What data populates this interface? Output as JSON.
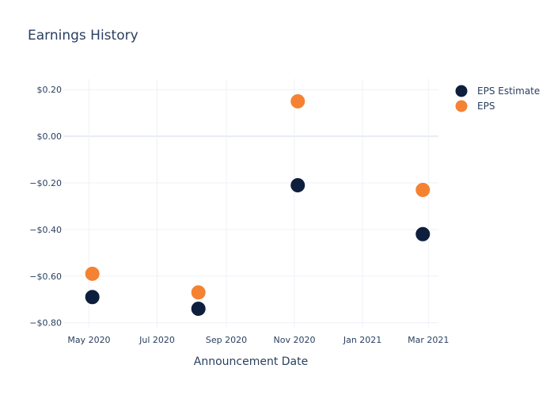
{
  "chart_data": {
    "type": "scatter",
    "title": "Earnings History",
    "xlabel": "Announcement Date",
    "ylabel": "",
    "x_axis_type": "date",
    "x_ticks": [
      {
        "date": "2020-05-01",
        "label": "May 2020"
      },
      {
        "date": "2020-07-01",
        "label": "Jul 2020"
      },
      {
        "date": "2020-09-01",
        "label": "Sep 2020"
      },
      {
        "date": "2020-11-01",
        "label": "Nov 2020"
      },
      {
        "date": "2021-01-01",
        "label": "Jan 2021"
      },
      {
        "date": "2021-03-01",
        "label": "Mar 2021"
      }
    ],
    "xlim": [
      "2020-04-08",
      "2021-03-10"
    ],
    "y_ticks": [
      {
        "value": 0.2,
        "label": "$0.20"
      },
      {
        "value": 0.0,
        "label": "$0.00"
      },
      {
        "value": -0.2,
        "label": "−$0.20"
      },
      {
        "value": -0.4,
        "label": "−$0.40"
      },
      {
        "value": -0.6,
        "label": "−$0.60"
      },
      {
        "value": -0.8,
        "label": "−$0.80"
      }
    ],
    "ylim": [
      -0.825,
      0.245
    ],
    "grid": true,
    "legend_position": "top-right",
    "series": [
      {
        "name": "EPS Estimate",
        "color": "#0d1f3c",
        "points": [
          {
            "x": "2020-05-04",
            "y": -0.69
          },
          {
            "x": "2020-08-07",
            "y": -0.74
          },
          {
            "x": "2020-11-04",
            "y": -0.21
          },
          {
            "x": "2021-02-24",
            "y": -0.42
          }
        ]
      },
      {
        "name": "EPS",
        "color": "#f58232",
        "points": [
          {
            "x": "2020-05-04",
            "y": -0.59
          },
          {
            "x": "2020-08-07",
            "y": -0.67
          },
          {
            "x": "2020-11-04",
            "y": 0.15
          },
          {
            "x": "2021-02-24",
            "y": -0.23
          }
        ]
      }
    ]
  }
}
